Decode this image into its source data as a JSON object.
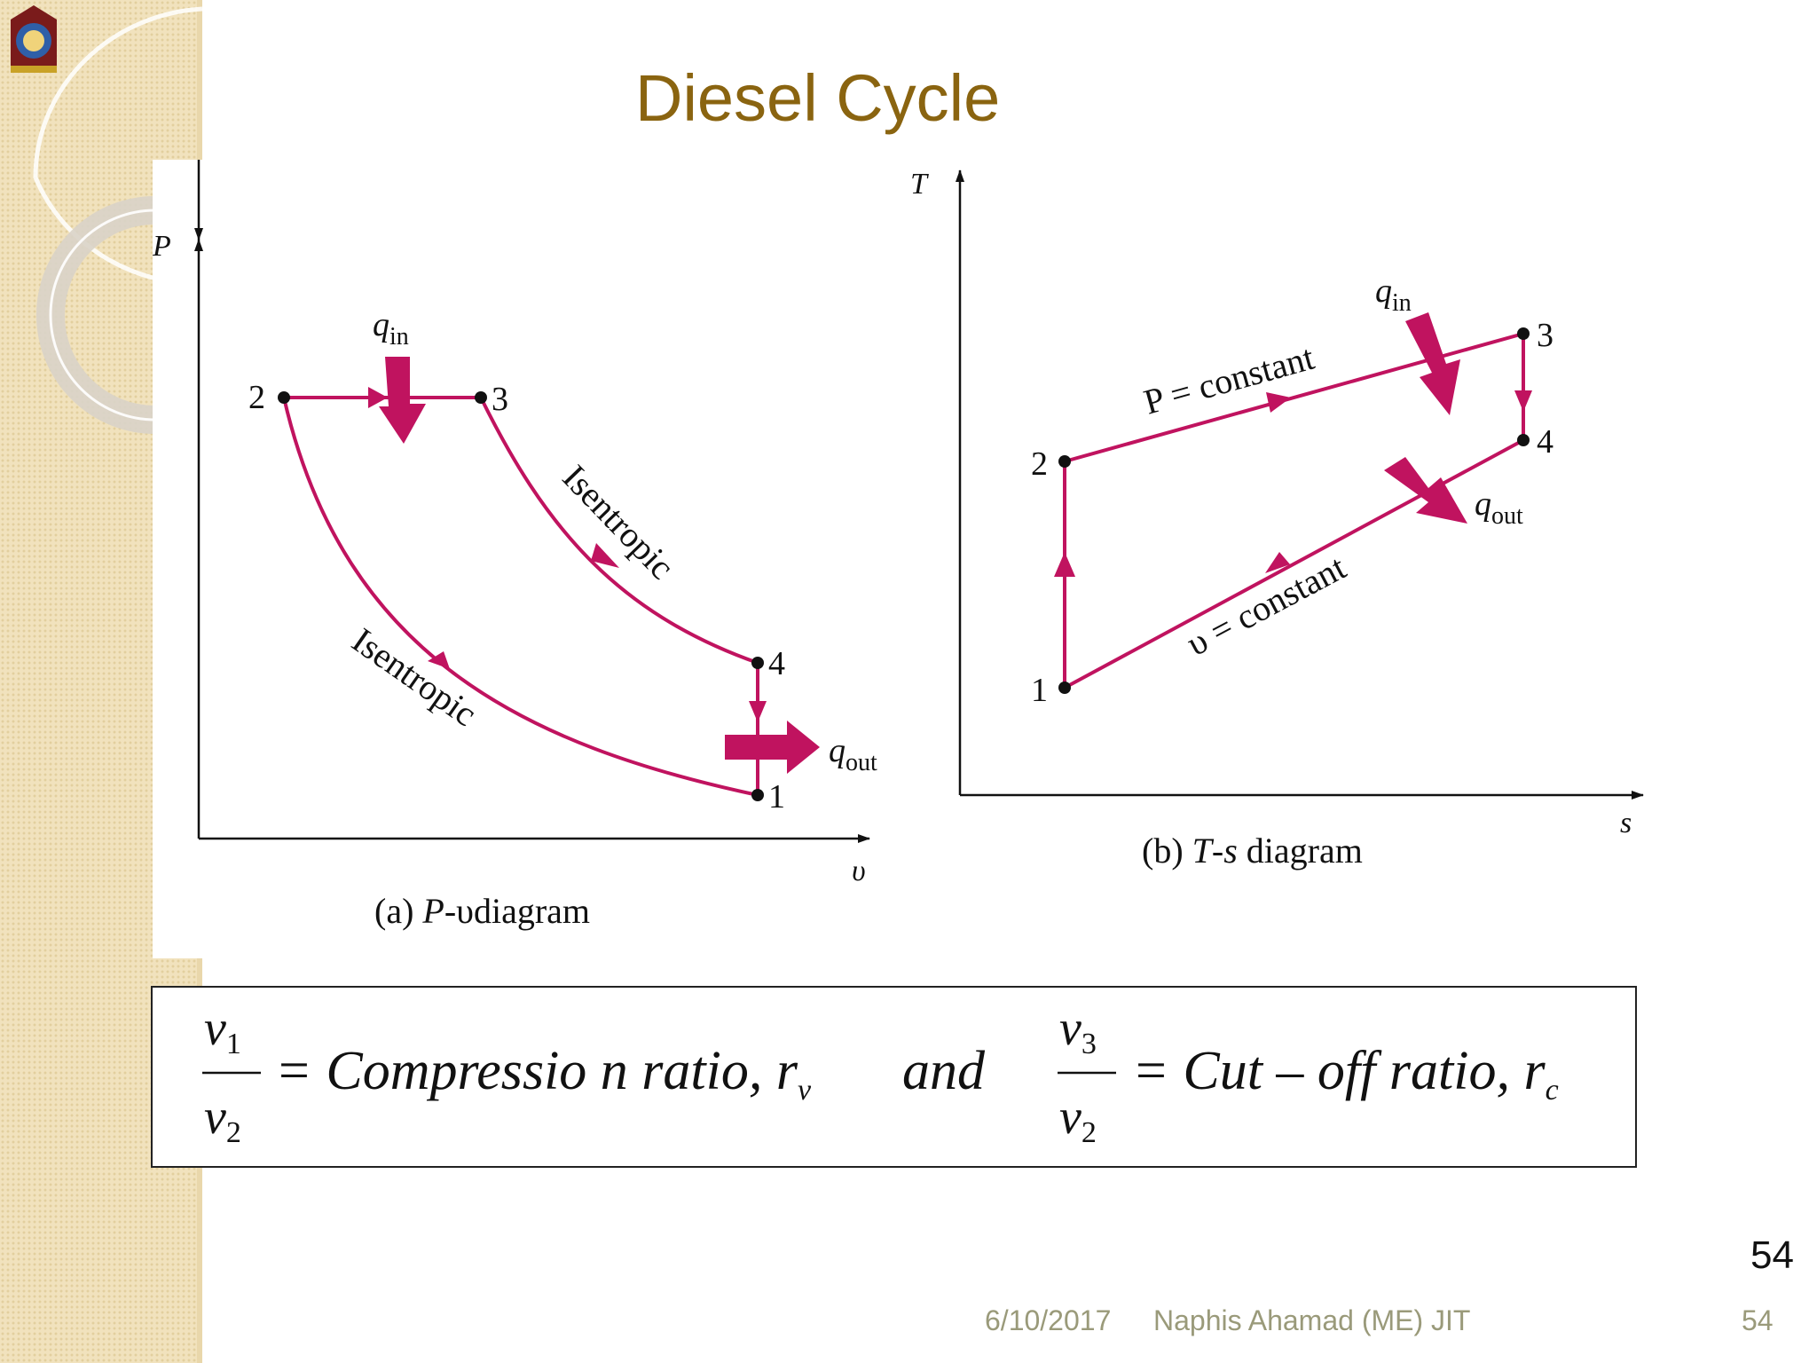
{
  "slide": {
    "title": "Diesel Cycle",
    "page_number": "54",
    "footer": {
      "date": "6/10/2017",
      "author": "Naphis Ahamad (ME) JIT",
      "page": "54"
    }
  },
  "pv_diagram": {
    "axis_y": "P",
    "axis_x": "υ",
    "points": [
      "1",
      "2",
      "3",
      "4"
    ],
    "q_in_main": "q",
    "q_in_sub": "in",
    "q_out_main": "q",
    "q_out_sub": "out",
    "process_expansion": "Isentropic",
    "process_compression": "Isentropic",
    "caption_prefix": "(a) ",
    "caption_italic": "P",
    "caption_mid": "-",
    "caption_symbol": "υ",
    "caption_word": "diagram"
  },
  "ts_diagram": {
    "axis_y": "T",
    "axis_x": "s",
    "points": [
      "1",
      "2",
      "3",
      "4"
    ],
    "q_in_main": "q",
    "q_in_sub": "in",
    "q_out_main": "q",
    "q_out_sub": "out",
    "process_heat_add": "P = constant",
    "process_heat_rej": "υ = constant",
    "caption_prefix": "(b) ",
    "caption_italic": "T",
    "caption_mid": "-",
    "caption_italic2": "s",
    "caption_word": " diagram"
  },
  "formula": {
    "left_num_var": "v",
    "left_num_sub": "1",
    "left_den_var": "v",
    "left_den_sub": "2",
    "left_text": "= Compressio n ratio, r",
    "left_sub": "v",
    "connector": "and",
    "right_num_var": "v",
    "right_num_sub": "3",
    "right_den_var": "v",
    "right_den_sub": "2",
    "right_text": "= Cut – off  ratio, r",
    "right_sub": "c"
  },
  "colors": {
    "curve": "#c0135f",
    "title": "#8a6410",
    "footer": "#9a9a7a",
    "side_panel": "#f1e2bd"
  }
}
